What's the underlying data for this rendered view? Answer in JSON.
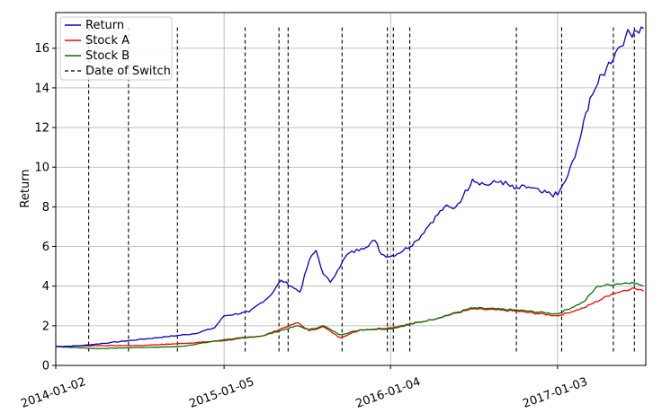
{
  "chart_data": {
    "type": "line",
    "title": "",
    "xlabel": "",
    "ylabel": "Return",
    "ylim": [
      0,
      17.8
    ],
    "grid": true,
    "legend": "top-left",
    "x_ticks": [
      "2014-01-02",
      "2015-01-05",
      "2016-01-04",
      "2017-01-03"
    ],
    "y_ticks": [
      0,
      2,
      4,
      6,
      8,
      10,
      12,
      14,
      16
    ],
    "x_range": [
      "2014-01-02",
      "2017-07-15"
    ],
    "series": [
      {
        "name": "Return",
        "color": "#0000cc",
        "x": [
          "2014-01-02",
          "2014-03-01",
          "2014-05-01",
          "2014-07-01",
          "2014-09-01",
          "2014-11-01",
          "2014-12-15",
          "2015-01-05",
          "2015-03-01",
          "2015-04-15",
          "2015-05-10",
          "2015-06-01",
          "2015-06-20",
          "2015-07-10",
          "2015-07-25",
          "2015-08-10",
          "2015-08-25",
          "2015-09-10",
          "2015-10-01",
          "2015-11-01",
          "2015-12-01",
          "2015-12-15",
          "2016-01-04",
          "2016-02-01",
          "2016-03-01",
          "2016-04-01",
          "2016-05-01",
          "2016-05-20",
          "2016-06-10",
          "2016-07-01",
          "2016-08-01",
          "2016-09-01",
          "2016-10-01",
          "2016-11-01",
          "2016-12-01",
          "2017-01-03",
          "2017-01-20",
          "2017-02-10",
          "2017-02-25",
          "2017-03-15",
          "2017-04-01",
          "2017-04-20",
          "2017-05-10",
          "2017-06-01",
          "2017-06-20",
          "2017-07-10"
        ],
        "y": [
          0.95,
          1.0,
          1.15,
          1.3,
          1.45,
          1.6,
          1.9,
          2.5,
          2.7,
          3.5,
          4.3,
          4.0,
          3.7,
          5.3,
          5.8,
          4.6,
          4.2,
          4.8,
          5.6,
          5.9,
          6.3,
          5.6,
          5.5,
          5.8,
          6.3,
          7.2,
          8.0,
          7.9,
          8.5,
          9.4,
          9.1,
          9.3,
          8.9,
          9.0,
          8.7,
          8.6,
          9.3,
          10.5,
          11.8,
          13.5,
          14.2,
          15.0,
          15.8,
          16.6,
          16.9,
          17.0
        ]
      },
      {
        "name": "Stock A",
        "color": "#ff0000",
        "x": [
          "2014-01-02",
          "2014-04-01",
          "2014-07-01",
          "2014-10-01",
          "2015-01-05",
          "2015-04-01",
          "2015-05-15",
          "2015-06-15",
          "2015-07-10",
          "2015-08-10",
          "2015-09-15",
          "2015-11-01",
          "2016-01-04",
          "2016-04-01",
          "2016-07-01",
          "2016-10-01",
          "2017-01-03",
          "2017-03-01",
          "2017-05-01",
          "2017-06-15",
          "2017-07-10"
        ],
        "y": [
          0.95,
          1.0,
          1.0,
          1.1,
          1.25,
          1.5,
          1.9,
          2.15,
          1.75,
          1.95,
          1.4,
          1.8,
          1.9,
          2.3,
          2.85,
          2.75,
          2.5,
          2.9,
          3.6,
          3.9,
          3.75
        ]
      },
      {
        "name": "Stock B",
        "color": "#007700",
        "x": [
          "2014-01-02",
          "2014-04-01",
          "2014-07-01",
          "2014-10-01",
          "2015-01-05",
          "2015-04-01",
          "2015-05-15",
          "2015-06-15",
          "2015-07-10",
          "2015-08-10",
          "2015-09-15",
          "2015-11-01",
          "2016-01-04",
          "2016-04-01",
          "2016-07-01",
          "2016-10-01",
          "2017-01-03",
          "2017-03-01",
          "2017-04-01",
          "2017-05-10",
          "2017-06-15",
          "2017-07-10"
        ],
        "y": [
          0.95,
          0.85,
          0.9,
          0.95,
          1.3,
          1.5,
          1.8,
          2.0,
          1.8,
          2.0,
          1.55,
          1.8,
          1.85,
          2.3,
          2.9,
          2.8,
          2.6,
          3.2,
          4.0,
          4.1,
          4.2,
          4.0
        ]
      }
    ],
    "switch_label": "Date of Switch",
    "switch_dates": [
      "2014-03-15",
      "2014-06-10",
      "2014-09-25",
      "2015-02-20",
      "2015-05-05",
      "2015-05-25",
      "2015-09-20",
      "2015-12-28",
      "2016-01-10",
      "2016-02-15",
      "2016-10-05",
      "2017-01-12",
      "2017-05-05",
      "2017-06-20"
    ]
  }
}
